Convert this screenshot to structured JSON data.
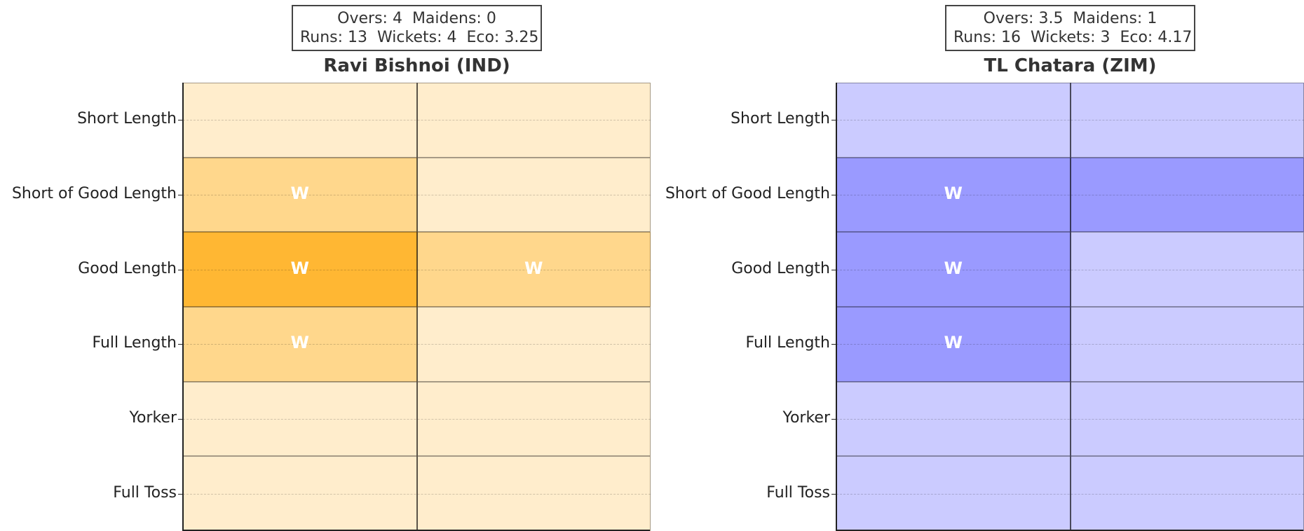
{
  "chart_data": [
    {
      "type": "heatmap",
      "title": "Ravi Bishnoi (IND)",
      "stats": {
        "line1": "Overs: 4  Maidens: 0",
        "line2": "Runs: 13  Wickets: 4  Eco: 3.25"
      },
      "rows": [
        "Short Length",
        "Short of Good Length",
        "Good Length",
        "Full Length",
        "Yorker",
        "Full Toss"
      ],
      "columns": 2,
      "base_color": "#FFA500",
      "intensity": [
        [
          0.2,
          0.2
        ],
        [
          0.45,
          0.2
        ],
        [
          0.8,
          0.45
        ],
        [
          0.45,
          0.2
        ],
        [
          0.2,
          0.2
        ],
        [
          0.2,
          0.2
        ]
      ],
      "wickets": [
        [
          0,
          0
        ],
        [
          1,
          0
        ],
        [
          1,
          1
        ],
        [
          1,
          0
        ],
        [
          0,
          0
        ],
        [
          0,
          0
        ]
      ],
      "wicket_label": "W"
    },
    {
      "type": "heatmap",
      "title": "TL Chatara (ZIM)",
      "stats": {
        "line1": "Overs: 3.5  Maidens: 1",
        "line2": "Runs: 16  Wickets: 3  Eco: 4.17"
      },
      "rows": [
        "Short Length",
        "Short of Good Length",
        "Good Length",
        "Full Length",
        "Yorker",
        "Full Toss"
      ],
      "columns": 2,
      "base_color": "#4040FF",
      "intensity": [
        [
          0.27,
          0.27
        ],
        [
          0.53,
          0.53
        ],
        [
          0.53,
          0.27
        ],
        [
          0.53,
          0.27
        ],
        [
          0.27,
          0.27
        ],
        [
          0.27,
          0.27
        ]
      ],
      "wickets": [
        [
          0,
          0
        ],
        [
          1,
          0
        ],
        [
          1,
          0
        ],
        [
          1,
          0
        ],
        [
          0,
          0
        ],
        [
          0,
          0
        ]
      ],
      "wicket_label": "W"
    }
  ]
}
